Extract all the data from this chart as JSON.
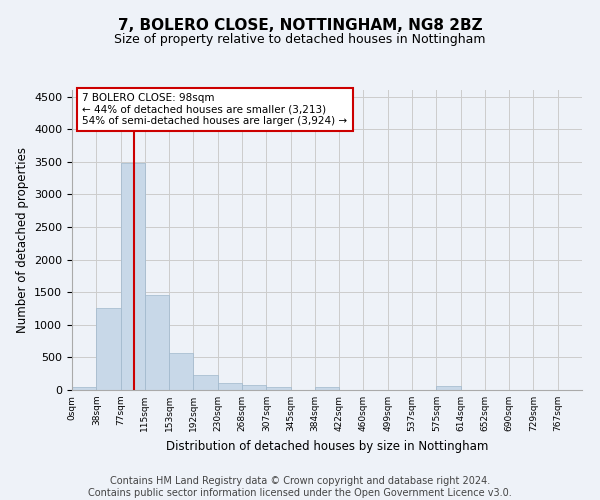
{
  "title": "7, BOLERO CLOSE, NOTTINGHAM, NG8 2BZ",
  "subtitle": "Size of property relative to detached houses in Nottingham",
  "xlabel": "Distribution of detached houses by size in Nottingham",
  "ylabel": "Number of detached properties",
  "bin_labels": [
    "0sqm",
    "38sqm",
    "77sqm",
    "115sqm",
    "153sqm",
    "192sqm",
    "230sqm",
    "268sqm",
    "307sqm",
    "345sqm",
    "384sqm",
    "422sqm",
    "460sqm",
    "499sqm",
    "537sqm",
    "575sqm",
    "614sqm",
    "652sqm",
    "690sqm",
    "729sqm",
    "767sqm"
  ],
  "bar_heights": [
    50,
    1250,
    3480,
    1450,
    575,
    235,
    110,
    75,
    50,
    0,
    50,
    0,
    0,
    0,
    0,
    55,
    0,
    0,
    0,
    0,
    0
  ],
  "bar_color": "#c8d8e8",
  "bar_edge_color": "#a0b8cc",
  "grid_color": "#cccccc",
  "bg_color": "#eef2f8",
  "vline_color": "#cc0000",
  "annotation_text": "7 BOLERO CLOSE: 98sqm\n← 44% of detached houses are smaller (3,213)\n54% of semi-detached houses are larger (3,924) →",
  "annotation_box_color": "#ffffff",
  "annotation_border_color": "#cc0000",
  "ylim": [
    0,
    4600
  ],
  "yticks": [
    0,
    500,
    1000,
    1500,
    2000,
    2500,
    3000,
    3500,
    4000,
    4500
  ],
  "footer_line1": "Contains HM Land Registry data © Crown copyright and database right 2024.",
  "footer_line2": "Contains public sector information licensed under the Open Government Licence v3.0.",
  "title_fontsize": 11,
  "subtitle_fontsize": 9,
  "footer_fontsize": 7
}
